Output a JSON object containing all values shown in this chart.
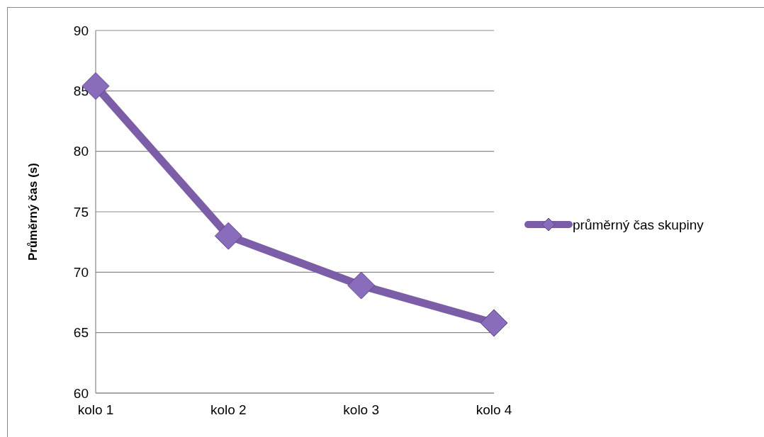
{
  "chart_data": {
    "type": "line",
    "ylabel": "Průměrný čas (s)",
    "categories": [
      "kolo 1",
      "kolo 2",
      "kolo 3",
      "kolo 4"
    ],
    "series": [
      {
        "name": "průměrný čas skupiny",
        "color": "#7b5ea7",
        "values": [
          85.4,
          73.0,
          68.9,
          65.8
        ]
      }
    ],
    "ylim": [
      60,
      90
    ],
    "yticks": [
      60,
      65,
      70,
      75,
      80,
      85,
      90
    ],
    "grid": "y",
    "legend": "right",
    "marker": "diamond"
  }
}
